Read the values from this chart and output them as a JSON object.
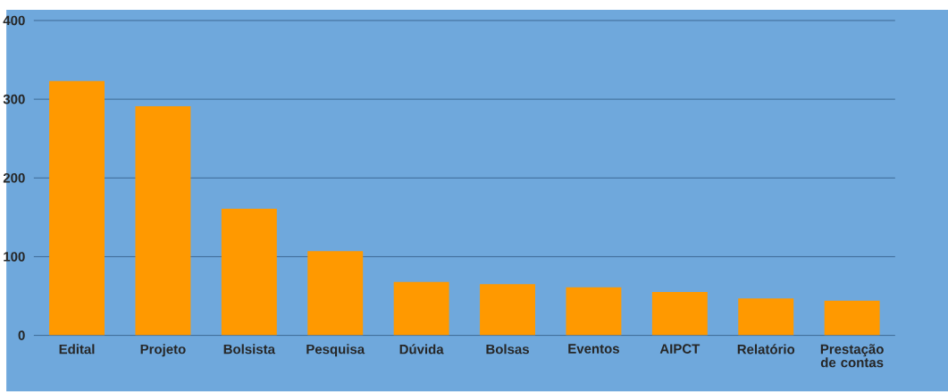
{
  "chart_data": {
    "type": "bar",
    "categories": [
      "Edital",
      "Projeto",
      "Bolsista",
      "Pesquisa",
      "Dúvida",
      "Bolsas",
      "Eventos",
      "AIPCT",
      "Relatório",
      "Prestação de contas"
    ],
    "values": [
      323,
      291,
      161,
      107,
      68,
      65,
      61,
      55,
      47,
      44
    ],
    "color": "#ff9900",
    "ylim": [
      0,
      400
    ],
    "yticks": [
      0,
      100,
      200,
      300,
      400
    ],
    "grid": "y"
  }
}
